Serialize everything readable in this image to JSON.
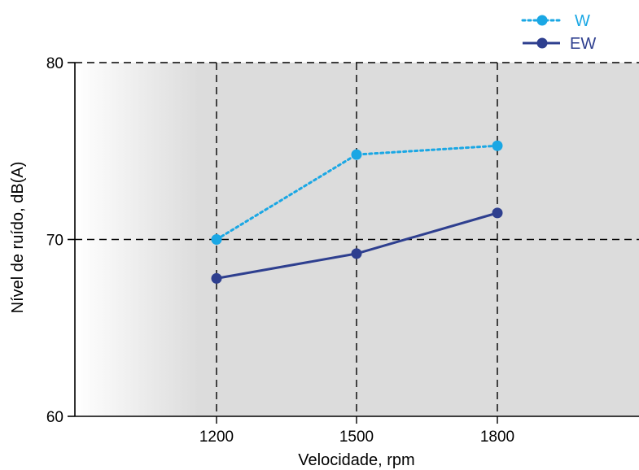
{
  "chart_data": {
    "type": "line",
    "xlabel": "Velocidade, rpm",
    "ylabel": "Nível de ruído, dB(A)",
    "categories": [
      "1200",
      "1500",
      "1800"
    ],
    "yticks": [
      "60",
      "70",
      "80"
    ],
    "ylim": [
      60,
      80
    ],
    "grid": true,
    "legend_position": "top-right",
    "series": [
      {
        "name": "W",
        "values": [
          70.0,
          74.8,
          75.3
        ],
        "color": "#1aa7e4",
        "style": "dotted"
      },
      {
        "name": "EW",
        "values": [
          67.8,
          69.2,
          71.5
        ],
        "color": "#2e3f8f",
        "style": "solid"
      }
    ]
  }
}
